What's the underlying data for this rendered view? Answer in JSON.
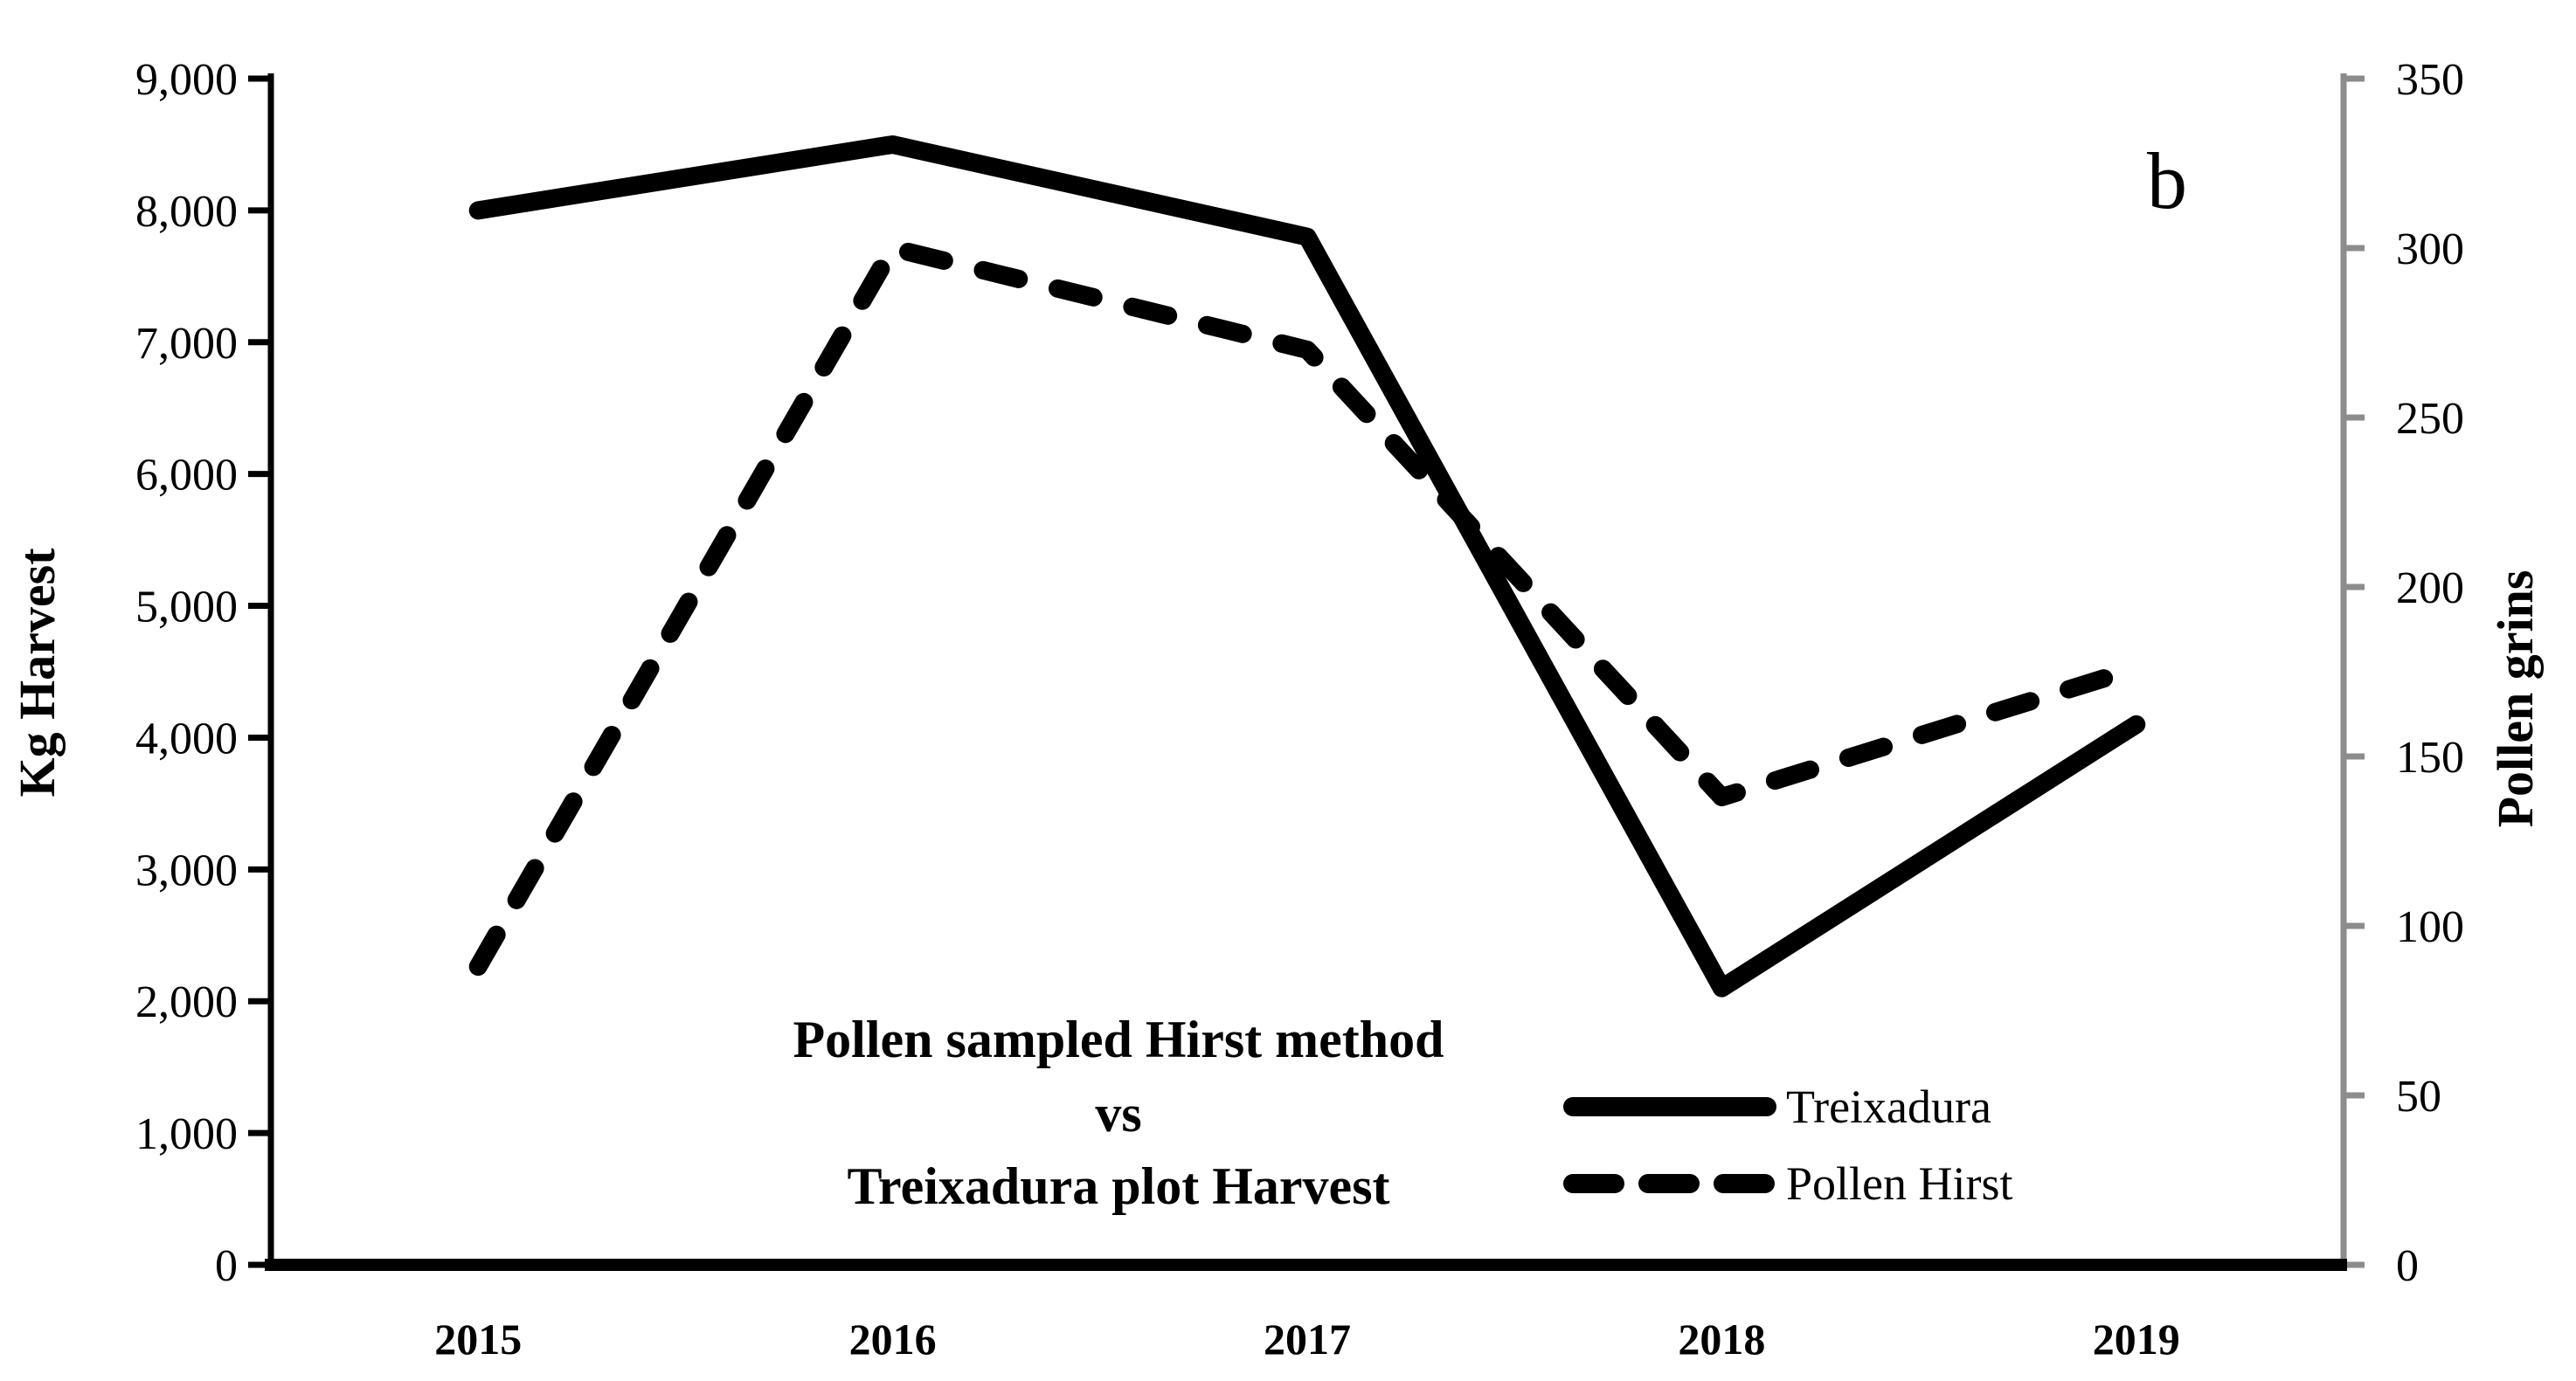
{
  "figure": {
    "panel_label": "b"
  },
  "chart_data": {
    "type": "line",
    "title": "Pollen sampled Hirst method vs Treixadura plot Harvest",
    "title_lines": [
      "Pollen sampled Hirst method",
      "vs",
      "Treixadura plot Harvest"
    ],
    "categories": [
      "2015",
      "2016",
      "2017",
      "2018",
      "2019"
    ],
    "series": [
      {
        "name": "Treixadura",
        "axis": "left",
        "style": "solid",
        "values": [
          8000,
          8500,
          7800,
          2100,
          4100
        ]
      },
      {
        "name": "Pollen Hirst",
        "axis": "right",
        "style": "dashed",
        "values": [
          88,
          300,
          270,
          138,
          176
        ]
      }
    ],
    "y_left": {
      "label": "Kg Harvest",
      "min": 0,
      "max": 9000,
      "tick_step": 1000,
      "tick_labels": [
        "0",
        "1,000",
        "2,000",
        "3,000",
        "4,000",
        "5,000",
        "6,000",
        "7,000",
        "8,000",
        "9,000"
      ]
    },
    "y_right": {
      "label": "Pollen grins",
      "min": 0,
      "max": 350,
      "tick_step": 50,
      "tick_labels": [
        "0",
        "50",
        "100",
        "150",
        "200",
        "250",
        "300",
        "350"
      ]
    },
    "legend": {
      "position": "inside-bottom-right",
      "entries": [
        "Treixadura",
        "Pollen Hirst"
      ]
    },
    "grid": false,
    "colors": {
      "line": "#000000",
      "right_axis": "#8C8C8C",
      "background": "#FFFFFF"
    }
  }
}
